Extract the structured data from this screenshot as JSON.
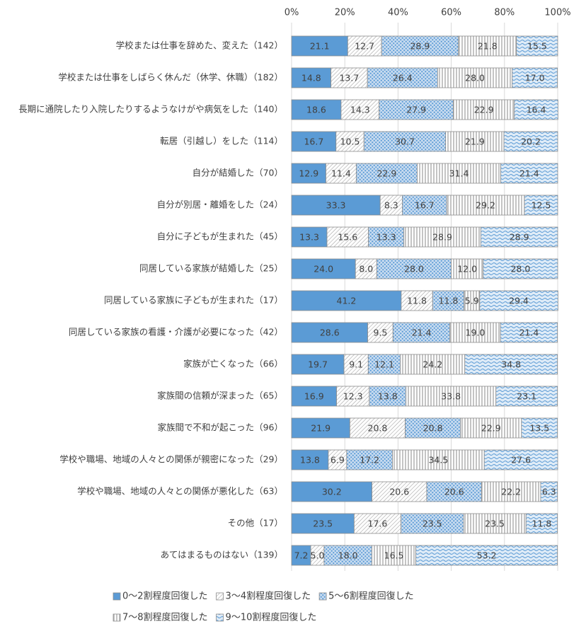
{
  "chart_data": {
    "type": "stacked-bar-horizontal",
    "categories": [
      "学校または仕事を辞めた、変えた（142）",
      "学校または仕事をしばらく休んだ（休学、休職）（182）",
      "長期に通院したり入院したりするようなけがや病気をした（140）",
      "転居（引越し）をした（114）",
      "自分が結婚した（70）",
      "自分が別居・離婚をした（24）",
      "自分に子どもが生まれた（45）",
      "同居している家族が結婚した（25）",
      "同居している家族に子どもが生まれた（17）",
      "同居している家族の看護・介護が必要になった（42）",
      "家族が亡くなった（66）",
      "家族間の信頼が深まった（65）",
      "家族間で不和が起こった（96）",
      "学校や職場、地域の人々との関係が親密になった（29）",
      "学校や職場、地域の人々との関係が悪化した（63）",
      "その他（17）",
      "あてはまるものはない（139）"
    ],
    "series": [
      {
        "name": "0～2割程度回復した",
        "color": "#5b9bd5",
        "values": [
          21.1,
          14.8,
          18.6,
          16.7,
          12.9,
          33.3,
          13.3,
          24.0,
          41.2,
          28.6,
          19.7,
          16.9,
          21.9,
          13.8,
          30.2,
          23.5,
          7.2
        ],
        "value_labels": [
          "21.1",
          "14.8",
          "18.6",
          "16.7",
          "12.9",
          "33.3",
          "13.3",
          "24.0",
          "41.2",
          "28.6",
          "19.7",
          "16.9",
          "21.9",
          "13.8",
          "30.2",
          "23.5",
          "7.2"
        ]
      },
      {
        "name": "3～4割程度回復した",
        "color": "#a5a5a5",
        "values": [
          12.7,
          13.7,
          14.3,
          10.5,
          11.4,
          8.3,
          15.6,
          8.0,
          11.8,
          9.5,
          9.1,
          12.3,
          20.8,
          6.9,
          20.6,
          17.6,
          5.0
        ],
        "value_labels": [
          "12.7",
          "13.7",
          "14.3",
          "10.5",
          "11.4",
          "8.3",
          "15.6",
          "8.0",
          "11.8",
          "9.5",
          "9.1",
          "12.3",
          "20.8",
          "6.9",
          "20.6",
          "17.6",
          "5.0"
        ]
      },
      {
        "name": "5～6割程度回復した",
        "color": "#5b9bd5",
        "values": [
          28.9,
          26.4,
          27.9,
          30.7,
          22.9,
          16.7,
          13.3,
          28.0,
          11.8,
          21.4,
          12.1,
          13.8,
          20.8,
          17.2,
          20.6,
          23.5,
          18.0
        ],
        "value_labels": [
          "28.9",
          "26.4",
          "27.9",
          "30.7",
          "22.9",
          "16.7",
          "13.3",
          "28.0",
          "11.8",
          "21.4",
          "12.1",
          "13.8",
          "20.8",
          "17.2",
          "20.6",
          "23.5",
          "18.0"
        ]
      },
      {
        "name": "7～8割程度回復した",
        "color": "#a5a5a5",
        "values": [
          21.8,
          28.0,
          22.9,
          21.9,
          31.4,
          29.2,
          28.9,
          12.0,
          5.9,
          19.0,
          24.2,
          33.8,
          22.9,
          34.5,
          22.2,
          23.5,
          16.5
        ],
        "value_labels": [
          "21.8",
          "28.0",
          "22.9",
          "21.9",
          "31.4",
          "29.2",
          "28.9",
          "12.0",
          "5.9",
          "19.0",
          "24.2",
          "33.8",
          "22.9",
          "34.5",
          "22.2",
          "23.5",
          "16.5"
        ]
      },
      {
        "name": "9～10割程度回復した",
        "color": "#5b9bd5",
        "values": [
          15.5,
          17.0,
          16.4,
          20.2,
          21.4,
          12.5,
          28.9,
          28.0,
          29.4,
          21.4,
          34.8,
          23.1,
          13.5,
          27.6,
          6.3,
          11.8,
          53.2
        ],
        "value_labels": [
          "15.5",
          "17.0",
          "16.4",
          "20.2",
          "21.4",
          "12.5",
          "28.9",
          "28.0",
          "29.4",
          "21.4",
          "34.8",
          "23.1",
          "13.5",
          "27.6",
          "6.3",
          "11.8",
          "53.2"
        ]
      }
    ],
    "xlim": [
      0,
      100
    ],
    "xticks": [
      {
        "value": 0,
        "label": "0%"
      },
      {
        "value": 20,
        "label": "20%"
      },
      {
        "value": 40,
        "label": "40%"
      },
      {
        "value": 60,
        "label": "60%"
      },
      {
        "value": 80,
        "label": "80%"
      },
      {
        "value": 100,
        "label": "100%"
      }
    ],
    "grid": true
  }
}
